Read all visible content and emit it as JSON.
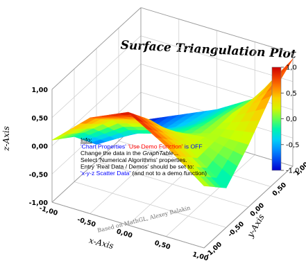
{
  "chart_data": {
    "type": "surface",
    "title": "Surface Triangulation Plot",
    "xlabel": "x-Axis",
    "ylabel": "y-Axis",
    "zlabel": "z-Axis",
    "x_ticks": [
      "-1,00",
      "-0,50",
      "0,00",
      "0,50",
      "1,00"
    ],
    "y_ticks": [
      "-1,00",
      "-0,50",
      "0,00",
      "0,50",
      "1,00"
    ],
    "z_ticks": [
      "-1,00",
      "-0,50",
      "0,00",
      "0,50",
      "1,00"
    ],
    "colorbar_ticks": [
      "1,0",
      "0,5",
      "0,0",
      "-0,5",
      "-1,0"
    ],
    "xlim": [
      -1,
      1
    ],
    "ylim": [
      -1,
      1
    ],
    "zlim": [
      -1,
      1
    ],
    "colormap": [
      "#0000cc",
      "#0066ff",
      "#00ccff",
      "#00ff99",
      "#ccff00",
      "#ffcc00",
      "#ff5500",
      "#cc0000"
    ],
    "surface_grid": {
      "x": [
        -1.0,
        -0.5,
        0.0,
        0.5,
        1.0
      ],
      "y": [
        -1.0,
        -0.5,
        0.0,
        0.5,
        1.0
      ],
      "z": [
        [
          0.1,
          0.7,
          1.0,
          0.6,
          0.1
        ],
        [
          -0.2,
          0.3,
          0.5,
          0.2,
          -0.3
        ],
        [
          -0.7,
          -0.3,
          -0.1,
          0.1,
          0.1
        ],
        [
          -0.9,
          -0.6,
          -0.3,
          0.1,
          0.6
        ],
        [
          -1.0,
          -0.7,
          -0.4,
          0.0,
          0.9
        ]
      ]
    },
    "annotations": {
      "credit": "Based on MathGL, Alexey Balakin",
      "info": [
        [
          {
            "text": "Info:",
            "color": "#000000",
            "underline": true
          }
        ],
        [
          {
            "text": "'Chart Properties' ",
            "color": "#0000ff"
          },
          {
            "text": "'Use Demo Function'",
            "color": "#ff0000"
          },
          {
            "text": " is OFF",
            "color": "#0000ff"
          }
        ],
        [
          {
            "text": "Change the data in the ",
            "color": "#000000"
          },
          {
            "text": "GraphTable",
            "color": "#000000",
            "italic": true
          },
          {
            "text": "...",
            "color": "#000000"
          }
        ],
        [
          {
            "text": "Select 'Numerical Algorithms' properties.",
            "color": "#000000"
          }
        ],
        [
          {
            "text": "Entry 'Real Data / Demos' should be set to:",
            "color": "#000000"
          }
        ],
        [
          {
            "text": "'x-y-z Scatter Data'",
            "color": "#0000ff"
          },
          {
            "text": " (and not to a demo function)",
            "color": "#000000"
          }
        ]
      ]
    }
  }
}
